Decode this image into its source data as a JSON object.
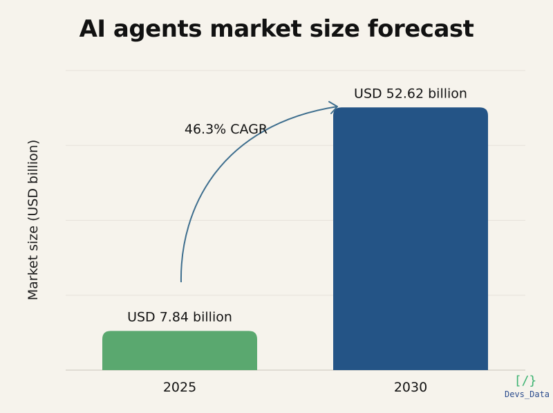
{
  "chart_data": {
    "type": "bar",
    "title": "AI agents market size forecast",
    "ylabel": "Market size (USD billion)",
    "xlabel": "",
    "categories": [
      "2025",
      "2030"
    ],
    "values": [
      7.84,
      52.62
    ],
    "value_labels": [
      "USD 7.84 billion",
      "USD 52.62 billion"
    ],
    "bar_colors": [
      "#5aa86f",
      "#245486"
    ],
    "ylim": [
      0,
      60
    ],
    "grid": true,
    "annotation": {
      "text": "46.3% CAGR",
      "type": "curved-arrow",
      "from": "2025",
      "to": "2030",
      "color": "#3e6e8e"
    }
  },
  "branding": {
    "logo_mark": "[/}",
    "logo_text": "Devs_Data",
    "logo_mark_color": "#3cb371",
    "logo_text_color": "#2a4b8d"
  }
}
